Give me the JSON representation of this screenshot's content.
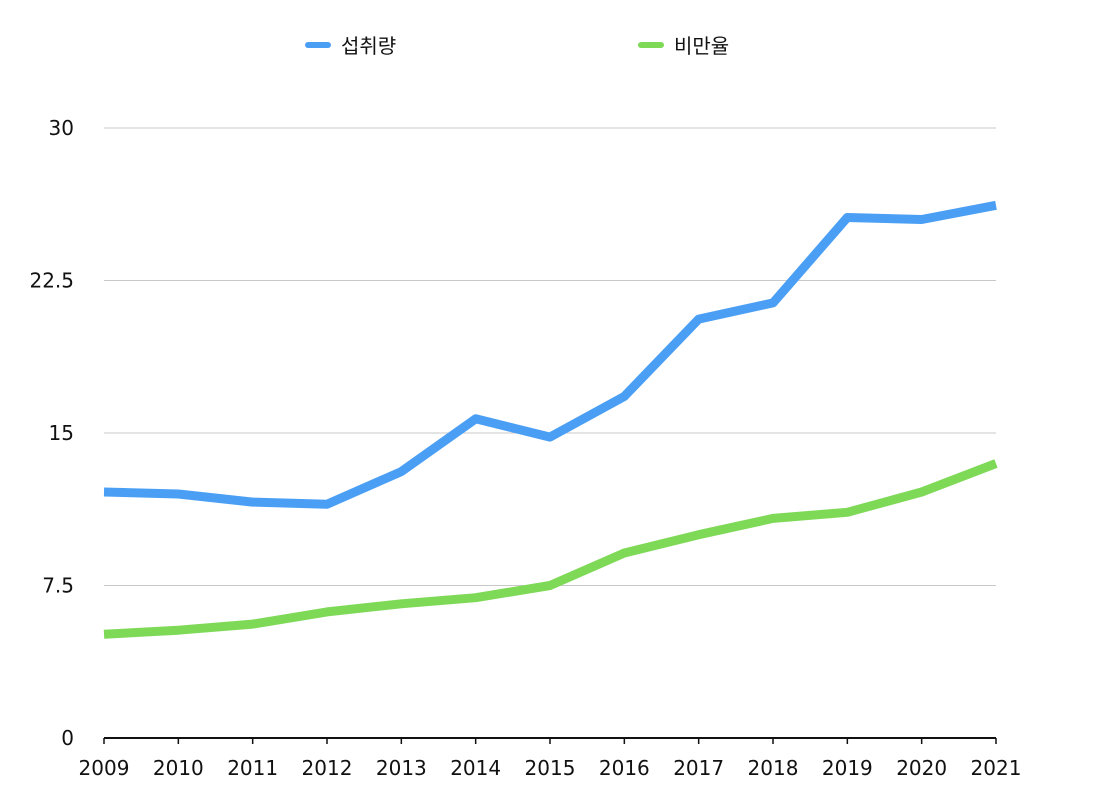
{
  "chart_data": {
    "type": "line",
    "x": [
      "2009",
      "2010",
      "2011",
      "2012",
      "2013",
      "2014",
      "2015",
      "2016",
      "2017",
      "2018",
      "2019",
      "2020",
      "2021"
    ],
    "series": [
      {
        "name": "섭취량",
        "color": "#4a9ff5",
        "values": [
          12.1,
          12.0,
          11.6,
          11.5,
          13.1,
          15.7,
          14.8,
          16.8,
          20.6,
          21.4,
          25.6,
          25.5,
          26.2
        ]
      },
      {
        "name": "비만율",
        "color": "#7ed957",
        "values": [
          5.1,
          5.3,
          5.6,
          6.2,
          6.6,
          6.9,
          7.5,
          9.1,
          10.0,
          10.8,
          11.1,
          12.1,
          13.5
        ]
      }
    ],
    "ylim": [
      0,
      30
    ],
    "yticks": [
      "0",
      "7.5",
      "15",
      "22.5",
      "30"
    ],
    "grid": true,
    "legend": "top"
  }
}
